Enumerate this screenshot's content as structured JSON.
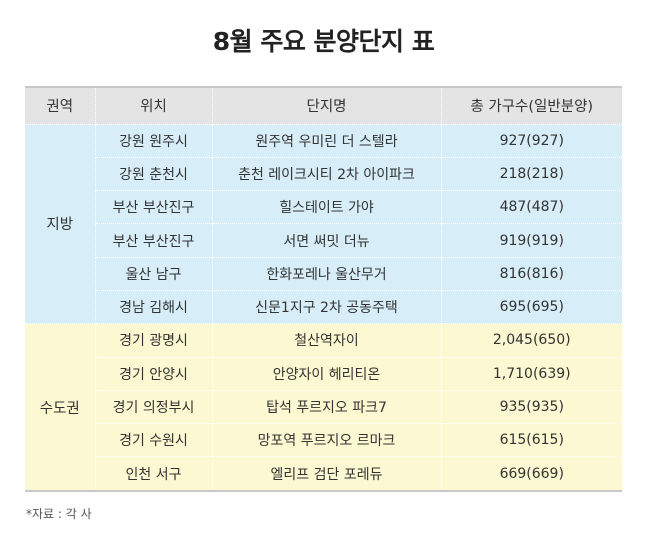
{
  "title": "8월 주요 분양단지 표",
  "headers": {
    "region": "권역",
    "location": "위치",
    "complex": "단지명",
    "households": "총 가구수(일반분양)"
  },
  "groups": [
    {
      "name": "지방",
      "rows": [
        {
          "location": "강원 원주시",
          "complex": "원주역 우미린 더 스텔라",
          "households": "927(927)"
        },
        {
          "location": "강원 춘천시",
          "complex": "춘천 레이크시티 2차 아이파크",
          "households": "218(218)"
        },
        {
          "location": "부산 부산진구",
          "complex": "힐스테이트 가야",
          "households": "487(487)"
        },
        {
          "location": "부산 부산진구",
          "complex": "서면 써밋 더뉴",
          "households": "919(919)"
        },
        {
          "location": "울산 남구",
          "complex": "한화포레나 울산무거",
          "households": "816(816)"
        },
        {
          "location": "경남 김해시",
          "complex": "신문1지구 2차 공동주택",
          "households": "695(695)"
        }
      ]
    },
    {
      "name": "수도권",
      "rows": [
        {
          "location": "경기 광명시",
          "complex": "철산역자이",
          "households": "2,045(650)"
        },
        {
          "location": "경기 안양시",
          "complex": "안양자이 헤리티온",
          "households": "1,710(639)"
        },
        {
          "location": "경기 의정부시",
          "complex": "탑석 푸르지오 파크7",
          "households": "935(935)"
        },
        {
          "location": "경기 수원시",
          "complex": "망포역 푸르지오 르마크",
          "households": "615(615)"
        },
        {
          "location": "인천 서구",
          "complex": "엘리프 검단 포레듀",
          "households": "669(669)"
        }
      ]
    }
  ],
  "note": "*자료 : 각 사",
  "colors": {
    "header_bg": "#e4e4e4",
    "local_bg": "#d7eef9",
    "metro_bg": "#fcf8d1"
  }
}
